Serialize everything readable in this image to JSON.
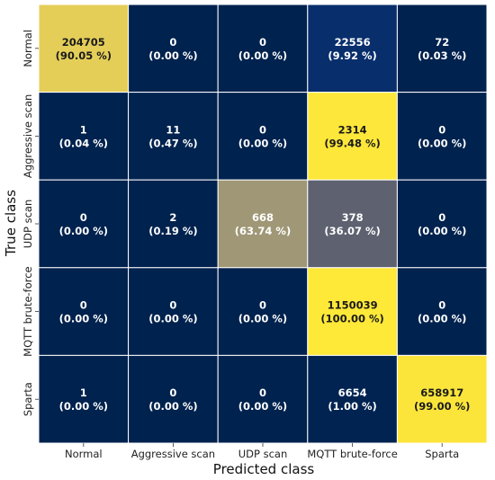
{
  "chart_data": {
    "type": "heatmap",
    "title": "",
    "xlabel": "Predicted class",
    "ylabel": "True class",
    "x_categories": [
      "Normal",
      "Aggressive scan",
      "UDP scan",
      "MQTT brute-force",
      "Sparta"
    ],
    "y_categories": [
      "Normal",
      "Aggressive scan",
      "UDP scan",
      "MQTT brute-force",
      "Sparta"
    ],
    "counts": [
      [
        204705,
        0,
        0,
        22556,
        72
      ],
      [
        1,
        11,
        0,
        2314,
        0
      ],
      [
        0,
        2,
        668,
        378,
        0
      ],
      [
        0,
        0,
        0,
        1150039,
        0
      ],
      [
        1,
        0,
        0,
        6654,
        658917
      ]
    ],
    "percent_labels": [
      [
        "(90.05 %)",
        "(0.00 %)",
        "(0.00 %)",
        "(9.92 %)",
        "(0.03 %)"
      ],
      [
        "(0.04 %)",
        "(0.47 %)",
        "(0.00 %)",
        "(99.48 %)",
        "(0.00 %)"
      ],
      [
        "(0.00 %)",
        "(0.19 %)",
        "(63.74 %)",
        "(36.07 %)",
        "(0.00 %)"
      ],
      [
        "(0.00 %)",
        "(0.00 %)",
        "(0.00 %)",
        "(100.00 %)",
        "(0.00 %)"
      ],
      [
        "(0.00 %)",
        "(0.00 %)",
        "(0.00 %)",
        "(1.00 %)",
        "(99.00 %)"
      ]
    ],
    "percent_values": [
      [
        90.05,
        0.0,
        0.0,
        9.92,
        0.03
      ],
      [
        0.04,
        0.47,
        0.0,
        99.48,
        0.0
      ],
      [
        0.0,
        0.19,
        63.74,
        36.07,
        0.0
      ],
      [
        0.0,
        0.0,
        0.0,
        100.0,
        0.0
      ],
      [
        0.0,
        0.0,
        0.0,
        1.0,
        99.0
      ]
    ],
    "colormap": "cividis",
    "color_range": [
      0,
      100
    ],
    "grid": true,
    "colors": {
      "gridline": "#ffffff",
      "text_light": "#ffffff",
      "text_dark": "#1a1a1a"
    }
  }
}
